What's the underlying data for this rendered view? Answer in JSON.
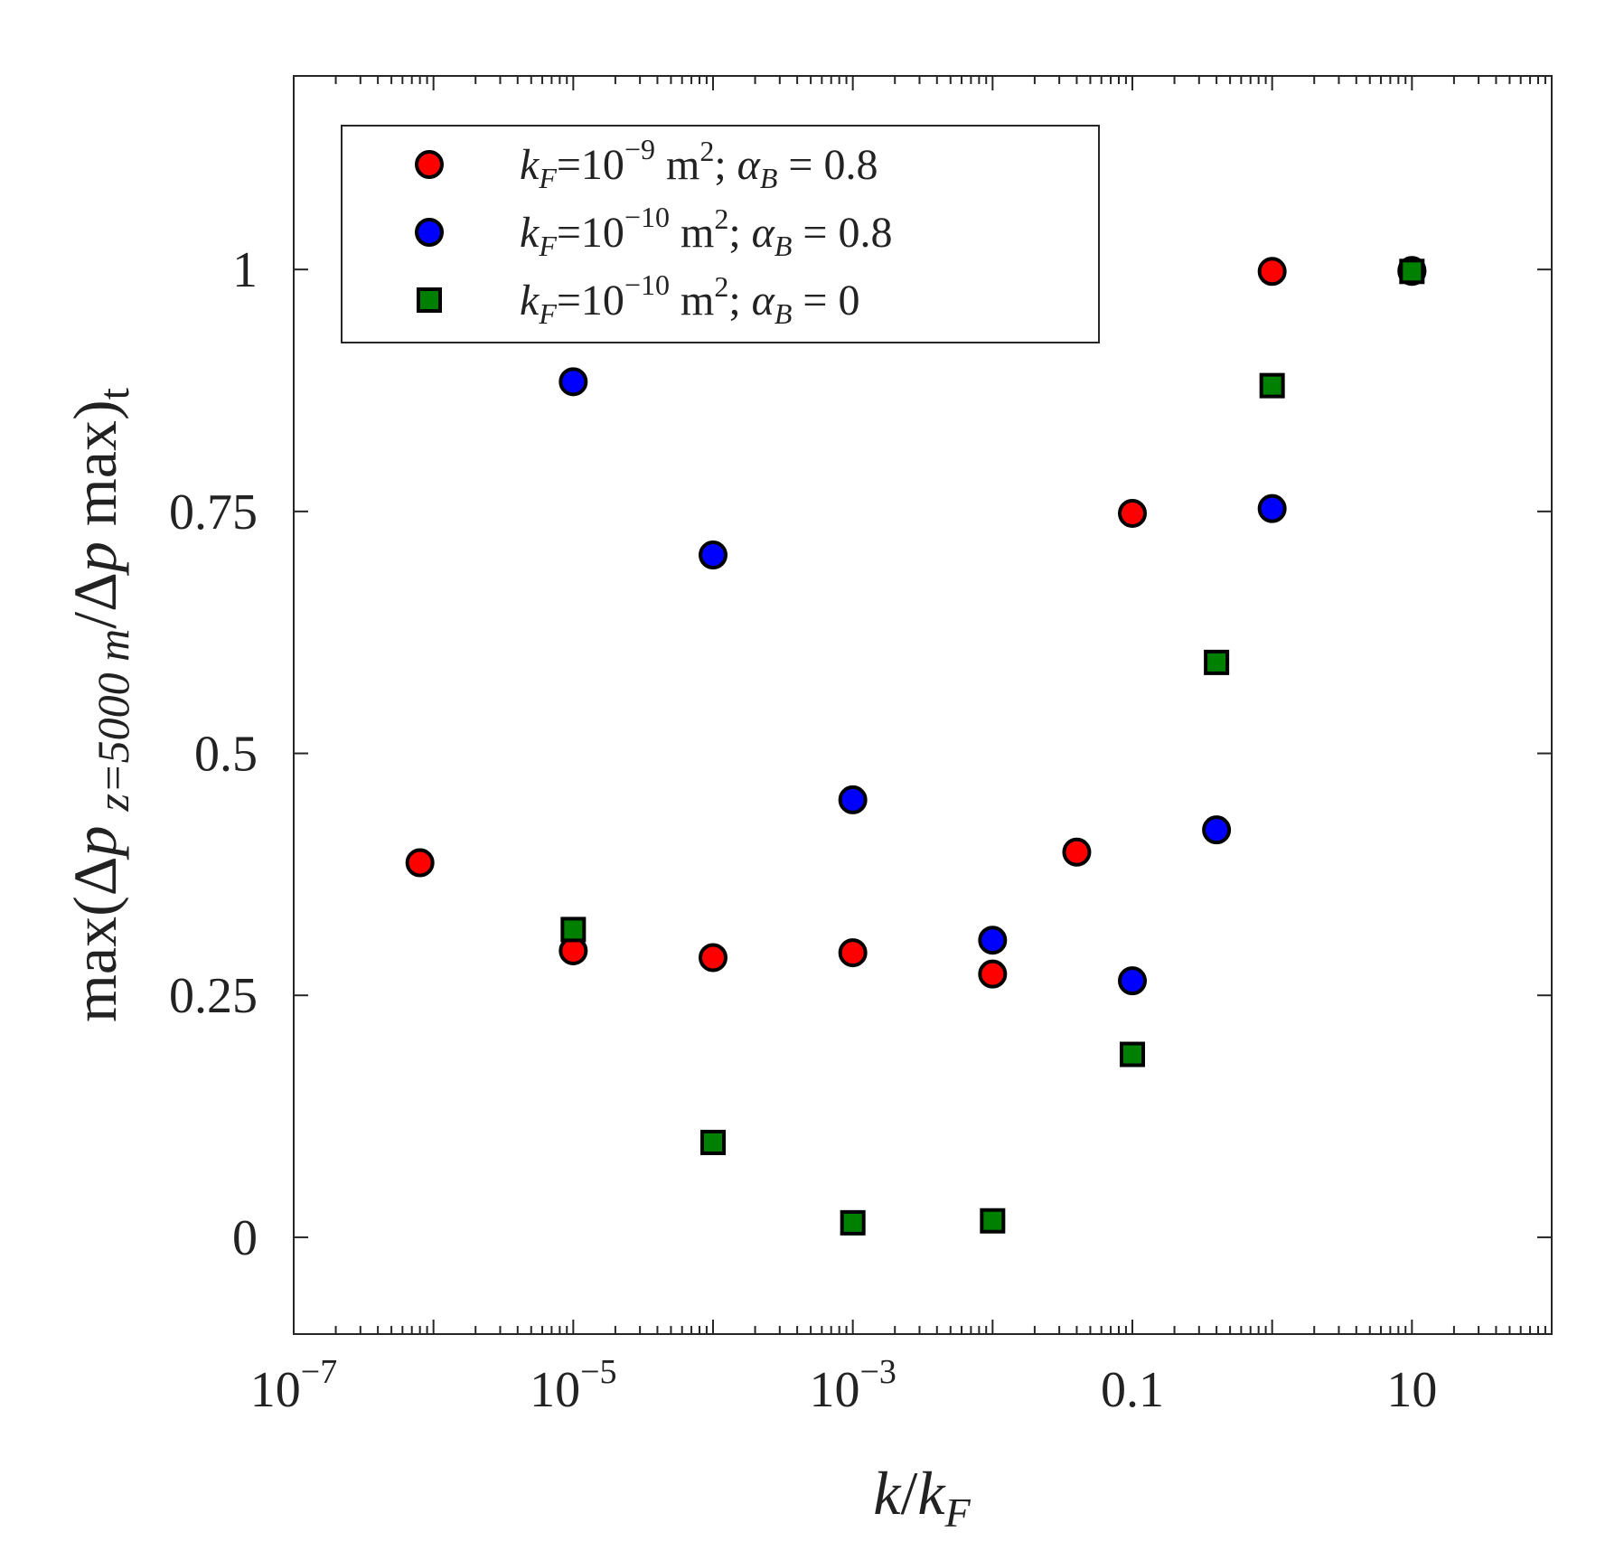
{
  "chart_data": {
    "type": "scatter",
    "title": "",
    "x_scale": "log",
    "xlim": [
      1e-07,
      100
    ],
    "ylim": [
      -0.1,
      1.2
    ],
    "x_ticks": [
      1e-07,
      1e-05,
      0.001,
      0.1,
      10
    ],
    "x_tick_labels": [
      {
        "base": "10",
        "exp": "−7"
      },
      {
        "base": "10",
        "exp": "−5"
      },
      {
        "base": "10",
        "exp": "−3"
      },
      {
        "base": "0.1",
        "exp": ""
      },
      {
        "base": "10",
        "exp": ""
      }
    ],
    "y_ticks": [
      0,
      0.25,
      0.5,
      0.75,
      1
    ],
    "y_tick_labels": [
      "0",
      "0.25",
      "0.5",
      "0.75",
      "1"
    ],
    "xlabel": {
      "k": "k",
      "slash": "/",
      "kF": "k",
      "sub": "F"
    },
    "ylabel": {
      "prefix": "max(Δ",
      "p1": "p",
      "sub": "z=5000 m",
      "mid": "/Δ",
      "p2": "p",
      "suffix": " max)",
      "end_sub": "t"
    },
    "legend_position": "top-left",
    "series": [
      {
        "name": "kF=1e-9 m2; alphaB=0.8",
        "legend": {
          "k": "k",
          "F": "F",
          "eq": "=10",
          "exp": "−9",
          "unit": " m",
          "sq": "2",
          "semi": "; ",
          "alpha": "α",
          "B": "B",
          "val": " = 0.8"
        },
        "marker": "circle",
        "color": "#ff0000",
        "points": [
          {
            "x": 8e-07,
            "y": 0.387
          },
          {
            "x": 1e-05,
            "y": 0.296
          },
          {
            "x": 0.0001,
            "y": 0.289
          },
          {
            "x": 0.001,
            "y": 0.294
          },
          {
            "x": 0.01,
            "y": 0.272
          },
          {
            "x": 0.04,
            "y": 0.398
          },
          {
            "x": 0.1,
            "y": 0.748
          },
          {
            "x": 1,
            "y": 0.998
          },
          {
            "x": 10,
            "y": 0.999
          }
        ]
      },
      {
        "name": "kF=1e-10 m2; alphaB=0.8",
        "legend": {
          "k": "k",
          "F": "F",
          "eq": "=10",
          "exp": "−10",
          "unit": " m",
          "sq": "2",
          "semi": "; ",
          "alpha": "α",
          "B": "B",
          "val": " = 0.8"
        },
        "marker": "circle",
        "color": "#0000ff",
        "points": [
          {
            "x": 1e-05,
            "y": 0.884
          },
          {
            "x": 0.0001,
            "y": 0.705
          },
          {
            "x": 0.001,
            "y": 0.452
          },
          {
            "x": 0.01,
            "y": 0.307
          },
          {
            "x": 0.1,
            "y": 0.265
          },
          {
            "x": 0.4,
            "y": 0.421
          },
          {
            "x": 1,
            "y": 0.753
          },
          {
            "x": 10,
            "y": 0.998
          }
        ]
      },
      {
        "name": "kF=1e-10 m2; alphaB=0",
        "legend": {
          "k": "k",
          "F": "F",
          "eq": "=10",
          "exp": "−10",
          "unit": " m",
          "sq": "2",
          "semi": "; ",
          "alpha": "α",
          "B": "B",
          "val": " = 0"
        },
        "marker": "square",
        "color": "#008000",
        "points": [
          {
            "x": 1e-05,
            "y": 0.318
          },
          {
            "x": 0.0001,
            "y": 0.098
          },
          {
            "x": 0.001,
            "y": 0.015
          },
          {
            "x": 0.01,
            "y": 0.017
          },
          {
            "x": 0.1,
            "y": 0.189
          },
          {
            "x": 0.4,
            "y": 0.594
          },
          {
            "x": 1,
            "y": 0.88
          },
          {
            "x": 10,
            "y": 0.998
          }
        ]
      }
    ]
  }
}
